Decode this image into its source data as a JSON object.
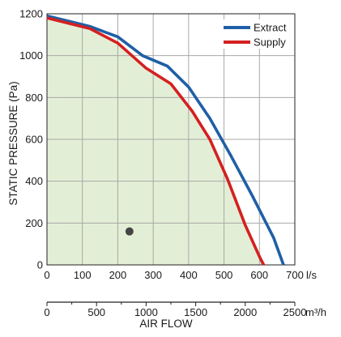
{
  "chart_data": {
    "type": "line",
    "ylabel": "STATIC PRESSURE (Pa)",
    "xlabel": "AIR FLOW",
    "x_unit": "l/s",
    "x2_unit": "m³/h",
    "xlim": [
      0,
      700
    ],
    "ylim": [
      0,
      1200
    ],
    "x2lim": [
      0,
      2500
    ],
    "x_ticks": [
      0,
      100,
      200,
      300,
      400,
      500,
      600,
      700
    ],
    "y_ticks": [
      0,
      200,
      400,
      600,
      800,
      1000,
      1200
    ],
    "x2_ticks": [
      0,
      500,
      1000,
      1500,
      2000,
      2500
    ],
    "grid": true,
    "legend_position": "top-right",
    "series": [
      {
        "name": "Extract",
        "color": "#1f5fa6",
        "x": [
          0,
          60,
          120,
          200,
          270,
          340,
          400,
          460,
          520,
          580,
          640,
          668
        ],
        "y": [
          1190,
          1165,
          1140,
          1090,
          1000,
          950,
          850,
          700,
          520,
          330,
          130,
          0
        ]
      },
      {
        "name": "Supply",
        "color": "#d42020",
        "x": [
          0,
          60,
          120,
          200,
          280,
          350,
          410,
          460,
          510,
          560,
          600,
          612
        ],
        "y": [
          1180,
          1155,
          1130,
          1060,
          940,
          865,
          735,
          600,
          410,
          190,
          40,
          0
        ]
      }
    ],
    "shaded_area": {
      "color": "#e2efd6",
      "x": [
        0,
        60,
        120,
        200,
        280,
        350,
        410,
        460,
        510,
        560,
        600,
        612
      ],
      "y": [
        1180,
        1155,
        1130,
        1060,
        940,
        865,
        735,
        600,
        410,
        190,
        40,
        0
      ],
      "x_start": 30
    },
    "marker_point": {
      "x": 233,
      "y": 160,
      "color": "#444444"
    }
  }
}
